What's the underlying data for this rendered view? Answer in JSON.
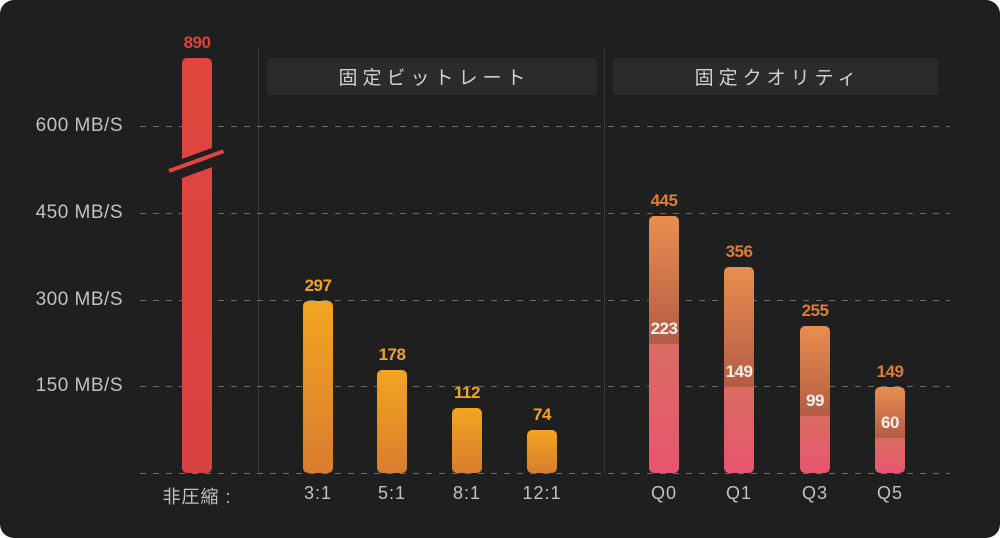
{
  "chart_data": {
    "type": "bar",
    "unit": "MB/S",
    "ylim": [
      0,
      650
    ],
    "grid": "dashed horizontal gridlines, dark theme, legend none",
    "y_ticks": [
      {
        "value": 600,
        "label": "600 MB/S"
      },
      {
        "value": 450,
        "label": "450 MB/S"
      },
      {
        "value": 300,
        "label": "300 MB/S"
      },
      {
        "value": 150,
        "label": "150 MB/S"
      }
    ],
    "axis_break": {
      "on_bar": "非圧縮 :",
      "reason": "value 890 exceeds the visible axis; bar drawn with diagonal break mark"
    },
    "groups": [
      {
        "name": "uncompressed",
        "header": "",
        "bars": [
          {
            "label": "非圧縮 :",
            "value": 890,
            "value_label": "890",
            "style": "red",
            "broken": true
          }
        ]
      },
      {
        "name": "fixed-bitrate",
        "header": "固定ビットレート",
        "bars": [
          {
            "label": "3:1",
            "value": 297,
            "value_label": "297",
            "style": "amber"
          },
          {
            "label": "5:1",
            "value": 178,
            "value_label": "178",
            "style": "amber"
          },
          {
            "label": "8:1",
            "value": 112,
            "value_label": "112",
            "style": "amber"
          },
          {
            "label": "12:1",
            "value": 74,
            "value_label": "74",
            "style": "amber"
          }
        ]
      },
      {
        "name": "fixed-quality",
        "header": "固定クオリティ",
        "bars": [
          {
            "label": "Q0",
            "value": 445,
            "value_label": "445",
            "inner_value": 223,
            "inner_label": "223",
            "style": "stacked"
          },
          {
            "label": "Q1",
            "value": 356,
            "value_label": "356",
            "inner_value": 149,
            "inner_label": "149",
            "style": "stacked"
          },
          {
            "label": "Q3",
            "value": 255,
            "value_label": "255",
            "inner_value": 99,
            "inner_label": "99",
            "style": "stacked"
          },
          {
            "label": "Q5",
            "value": 149,
            "value_label": "149",
            "inner_value": 60,
            "inner_label": "60",
            "style": "stacked"
          }
        ]
      }
    ]
  },
  "colors": {
    "background": "#1f1f1f",
    "page_bg": "#ffffff",
    "red_bar": "#e0463e",
    "red_label": "#e2413a",
    "amber_top": "#f2a522",
    "amber_bottom": "#d87d2e",
    "amber_label": "#efa428",
    "quality_top_start": "#e98e4f",
    "quality_top_end": "#b45b46",
    "quality_bottom_start": "#d96c62",
    "quality_bottom_end": "#e8556f",
    "quality_label": "#de7c3a",
    "inner_label": "#f7f1e8",
    "axis_text": "#c2c1c0",
    "gridline": "#6e6e6e",
    "divider": "#3b3b3b",
    "header_bg": "#2b2b2b",
    "header_text": "#d2d0ce"
  }
}
